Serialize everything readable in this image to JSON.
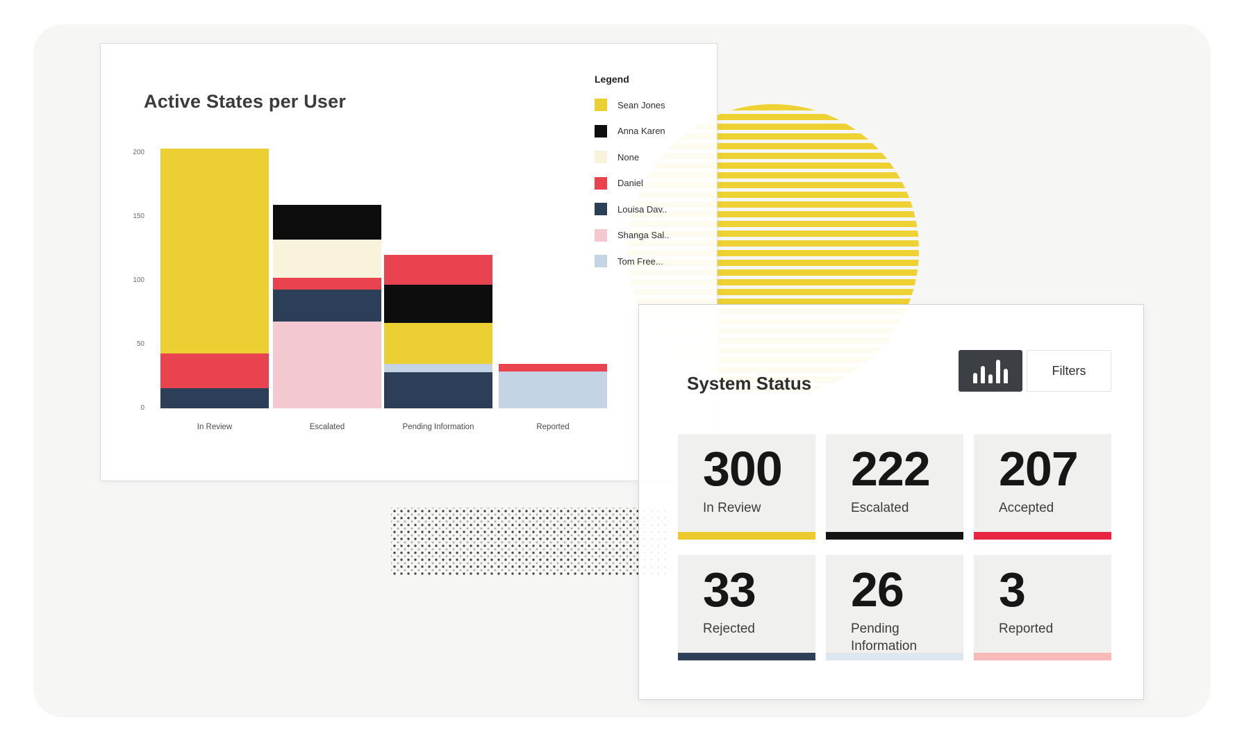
{
  "palette": {
    "page_bg": "#ffffff",
    "panel_bg": "#f6f6f4",
    "circle_stripe_yellow": "#eed133",
    "charcoal_button": "#3c4045"
  },
  "chart_card": {
    "title": "Active States per User",
    "legend_title": "Legend"
  },
  "chart_data": {
    "type": "bar",
    "stacked": true,
    "title": "Active States per User",
    "categories": [
      "In Review",
      "Escalated",
      "Pending Information",
      "Reported"
    ],
    "users": [
      {
        "name": "Sean Jones",
        "color": "#ecd033"
      },
      {
        "name": "Anna Karen",
        "color": "#0d0d0d"
      },
      {
        "name": "None",
        "color": "#faf3dc"
      },
      {
        "name": "Daniel",
        "color": "#e8434e"
      },
      {
        "name": "Louisa Dav..",
        "color": "#2c3e58"
      },
      {
        "name": "Shanga Sal..",
        "color": "#f4c8d0"
      },
      {
        "name": "Tom Free...",
        "color": "#c4d4e4"
      }
    ],
    "bars": [
      {
        "category": "In Review",
        "segments_bottom_to_top": [
          {
            "user": "Louisa Dav..",
            "value": 16
          },
          {
            "user": "Daniel",
            "value": 27
          },
          {
            "user": "Sean Jones",
            "value": 160
          }
        ]
      },
      {
        "category": "Escalated",
        "segments_bottom_to_top": [
          {
            "user": "Shanga Sal..",
            "value": 68
          },
          {
            "user": "Louisa Dav..",
            "value": 25
          },
          {
            "user": "Daniel",
            "value": 9
          },
          {
            "user": "None",
            "value": 30
          },
          {
            "user": "Anna Karen",
            "value": 27
          }
        ]
      },
      {
        "category": "Pending Information",
        "segments_bottom_to_top": [
          {
            "user": "Louisa Dav..",
            "value": 28
          },
          {
            "user": "Tom Free...",
            "value": 7
          },
          {
            "user": "Sean Jones",
            "value": 32
          },
          {
            "user": "Anna Karen",
            "value": 30
          },
          {
            "user": "Daniel",
            "value": 23
          }
        ]
      },
      {
        "category": "Reported",
        "segments_bottom_to_top": [
          {
            "user": "Tom Free...",
            "value": 29
          },
          {
            "user": "Daniel",
            "value": 6
          }
        ]
      }
    ],
    "yticks": [
      0,
      50,
      100,
      150,
      200
    ],
    "ylim": [
      0,
      200
    ],
    "grid": false,
    "legend_position": "right"
  },
  "status_card": {
    "title": "System Status",
    "chart_view_icon": "bar-chart-icon",
    "filters_label": "Filters",
    "tiles": [
      {
        "value": "300",
        "label": "In Review",
        "underline_color": "#ecc92d"
      },
      {
        "value": "222",
        "label": "Escalated",
        "underline_color": "#131313"
      },
      {
        "value": "207",
        "label": "Accepted",
        "underline_color": "#e82540"
      },
      {
        "value": "33",
        "label": "Rejected",
        "underline_color": "#2e4057"
      },
      {
        "value": "26",
        "label": "Pending Information",
        "underline_color": "#dde7f1"
      },
      {
        "value": "3",
        "label": "Reported",
        "underline_color": "#f7bab8"
      }
    ]
  }
}
